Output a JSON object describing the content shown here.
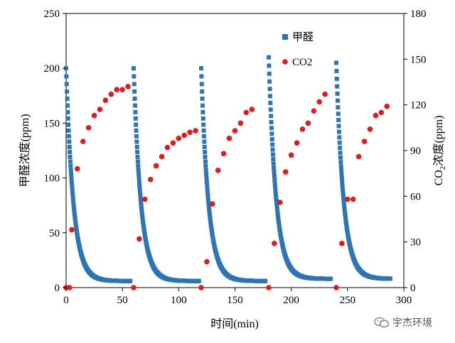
{
  "chart_data": {
    "type": "scatter",
    "xlabel": "时间(min)",
    "ylabel_left": "甲醛浓度(ppm)",
    "ylabel_right_prefix": "CO",
    "ylabel_right_sub": "2",
    "ylabel_right_suffix": "浓度(ppm)",
    "xlim": [
      0,
      300
    ],
    "ylim_left": [
      0,
      250
    ],
    "ylim_right": [
      0,
      180
    ],
    "x_ticks": [
      "0",
      "50",
      "100",
      "150",
      "200",
      "250",
      "300"
    ],
    "y_left_ticks": [
      "0",
      "50",
      "100",
      "150",
      "200",
      "250"
    ],
    "y_right_ticks": [
      "0",
      "30",
      "60",
      "90",
      "120",
      "150",
      "180"
    ],
    "legend_position": "top-right (inside plot)",
    "grid": false,
    "series": [
      {
        "name": "甲醛",
        "axis": "left",
        "marker": "square",
        "color": "#2e75b6",
        "segments": [
          {
            "start": 0,
            "end": 57,
            "peak": 200,
            "base": 6
          },
          {
            "start": 60,
            "end": 118,
            "peak": 200,
            "base": 6
          },
          {
            "start": 120,
            "end": 177,
            "peak": 200,
            "base": 6
          },
          {
            "start": 180,
            "end": 235,
            "peak": 210,
            "base": 8
          },
          {
            "start": 240,
            "end": 288,
            "peak": 205,
            "base": 8
          }
        ]
      },
      {
        "name": "CO2",
        "axis": "right",
        "marker": "circle",
        "color": "#e31a1c",
        "x": [
          0,
          3,
          5,
          10,
          15,
          20,
          25,
          30,
          35,
          40,
          45,
          50,
          55,
          60,
          65,
          70,
          75,
          80,
          85,
          90,
          95,
          100,
          105,
          110,
          115,
          120,
          125,
          130,
          135,
          140,
          145,
          150,
          155,
          160,
          165,
          180,
          185,
          190,
          195,
          200,
          205,
          210,
          215,
          220,
          225,
          230,
          240,
          245,
          250,
          255,
          260,
          265,
          270,
          275,
          280,
          285
        ],
        "y": [
          0,
          0,
          38,
          78,
          96,
          105,
          113,
          117,
          123,
          127,
          130,
          130,
          132,
          0,
          32,
          58,
          71,
          80,
          86,
          92,
          95,
          98,
          100,
          102,
          103,
          0,
          17,
          55,
          77,
          88,
          98,
          103,
          108,
          115,
          117,
          0,
          29,
          56,
          76,
          87,
          95,
          104,
          108,
          116,
          122,
          127,
          0,
          29,
          58,
          58,
          86,
          96,
          104,
          113,
          115,
          119
        ]
      }
    ],
    "legend": [
      {
        "label": "甲醛",
        "marker": "square",
        "color": "#2e75b6"
      },
      {
        "label": "CO2",
        "marker": "circle",
        "color": "#e31a1c"
      }
    ]
  },
  "watermark": {
    "text": "宇杰环境",
    "icon": "wechat-logo-icon"
  }
}
